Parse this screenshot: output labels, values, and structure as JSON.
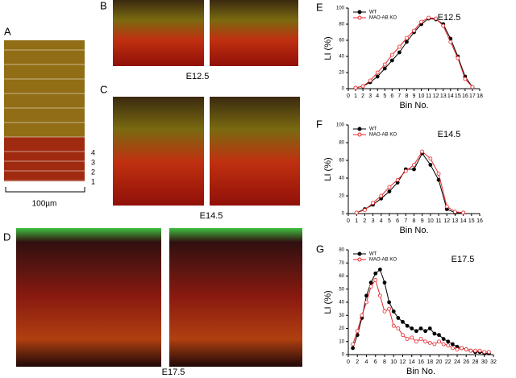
{
  "labels": {
    "a": "A",
    "b": "B",
    "c": "C",
    "d": "D"
  },
  "captions": [
    "E12.5",
    "E14.5",
    "E17.5"
  ],
  "panel_a": {
    "scale": "100µm",
    "bins": [
      4,
      3,
      2,
      1
    ]
  },
  "chart_data": [
    {
      "type": "line",
      "panel": "E",
      "title": "E12.5",
      "x_label": "Bin No.",
      "y_label": "LI (%)",
      "x": [
        1,
        2,
        3,
        4,
        5,
        6,
        7,
        8,
        9,
        10,
        11,
        12,
        13,
        14,
        15,
        16,
        17
      ],
      "series": [
        {
          "name": "WT",
          "color": "#000000",
          "values": [
            1,
            3,
            8,
            15,
            25,
            35,
            45,
            58,
            70,
            80,
            87,
            86,
            80,
            62,
            40,
            15,
            2
          ]
        },
        {
          "name": "MAO-AB KO",
          "color": "#e8262a",
          "values": [
            1,
            3,
            10,
            20,
            30,
            42,
            52,
            63,
            72,
            83,
            88,
            87,
            78,
            58,
            38,
            12,
            2
          ]
        }
      ],
      "xlim": [
        0,
        18
      ],
      "xticks": [
        0,
        1,
        2,
        3,
        4,
        5,
        6,
        7,
        8,
        9,
        10,
        11,
        12,
        13,
        14,
        15,
        16,
        17,
        18
      ],
      "ylim": [
        0,
        100
      ],
      "yticks": [
        0,
        20,
        40,
        60,
        80,
        100
      ]
    },
    {
      "type": "line",
      "panel": "F",
      "title": "E14.5",
      "x_label": "Bin No.",
      "y_label": "LI (%)",
      "x": [
        1,
        2,
        3,
        4,
        5,
        6,
        7,
        8,
        9,
        10,
        11,
        12,
        13,
        14
      ],
      "series": [
        {
          "name": "WT",
          "color": "#000000",
          "values": [
            1,
            5,
            10,
            17,
            25,
            35,
            50,
            50,
            68,
            55,
            38,
            5,
            1,
            1
          ]
        },
        {
          "name": "MAO-AB KO",
          "color": "#e8262a",
          "values": [
            1,
            4,
            12,
            20,
            30,
            38,
            48,
            55,
            70,
            62,
            45,
            8,
            2,
            1
          ]
        }
      ],
      "xlim": [
        0,
        16
      ],
      "xticks": [
        0,
        1,
        2,
        3,
        4,
        5,
        6,
        7,
        8,
        9,
        10,
        11,
        12,
        13,
        14,
        15,
        16
      ],
      "ylim": [
        0,
        100
      ],
      "yticks": [
        0,
        20,
        40,
        60,
        80,
        100
      ]
    },
    {
      "type": "line",
      "panel": "G",
      "title": "E17.5",
      "x_label": "Bin No.",
      "y_label": "LI (%)",
      "x": [
        1,
        2,
        3,
        4,
        5,
        6,
        7,
        8,
        9,
        10,
        11,
        12,
        13,
        14,
        15,
        16,
        17,
        18,
        19,
        20,
        21,
        22,
        23,
        24,
        25,
        26,
        27,
        28,
        29,
        30,
        31
      ],
      "series": [
        {
          "name": "WT",
          "color": "#000000",
          "values": [
            5,
            15,
            28,
            45,
            55,
            62,
            65,
            55,
            40,
            33,
            28,
            25,
            22,
            20,
            18,
            20,
            18,
            20,
            16,
            15,
            12,
            10,
            8,
            6,
            5,
            4,
            3,
            2,
            2,
            1,
            1
          ]
        },
        {
          "name": "MAO-AB KO",
          "color": "#e8262a",
          "values": [
            8,
            18,
            30,
            40,
            52,
            57,
            45,
            33,
            35,
            22,
            20,
            15,
            12,
            13,
            10,
            12,
            10,
            9,
            8,
            10,
            8,
            7,
            5,
            4,
            5,
            4,
            3,
            3,
            3,
            2,
            2
          ]
        }
      ],
      "xlim": [
        0,
        32
      ],
      "xticks": [
        0,
        2,
        4,
        6,
        8,
        10,
        12,
        14,
        16,
        18,
        20,
        22,
        24,
        26,
        28,
        30,
        32
      ],
      "ylim": [
        0,
        80
      ],
      "yticks": [
        0,
        10,
        20,
        30,
        40,
        50,
        60,
        70,
        80
      ]
    }
  ]
}
